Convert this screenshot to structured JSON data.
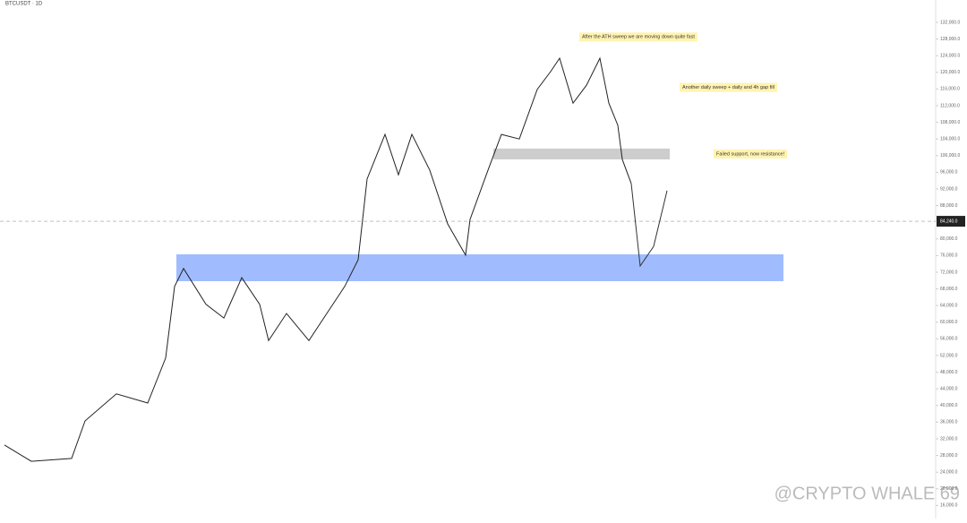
{
  "header": {
    "symbol": "BTCUSDT · 1D"
  },
  "chart_data": {
    "type": "line",
    "x": [
      5,
      35,
      80,
      95,
      130,
      165,
      185,
      195,
      205,
      230,
      250,
      270,
      290,
      300,
      320,
      345,
      365,
      385,
      400,
      410,
      430,
      445,
      460,
      480,
      500,
      520,
      525,
      545,
      560,
      580,
      600,
      615,
      625,
      640,
      655,
      670,
      680,
      690,
      695,
      705
    ],
    "values": [
      30500,
      26600,
      27300,
      36300,
      42800,
      40600,
      51400,
      68600,
      72900,
      64300,
      61000,
      70700,
      64300,
      55600,
      62100,
      55600,
      62100,
      68600,
      75000,
      94400,
      105100,
      95400,
      105100,
      96500,
      83600,
      76100,
      84700,
      96500,
      105100,
      104000,
      115900,
      120200,
      123400,
      112600,
      116900,
      123400,
      112600,
      107300,
      99100,
      93300
    ],
    "projection": {
      "x": [
        705,
        715,
        730,
        745
      ],
      "values": [
        93300,
        73500,
        78200,
        91600
      ]
    },
    "color": "#222222",
    "projection_color": "#333333",
    "xlim": [
      0,
      1050
    ],
    "ylim": [
      14000,
      136000
    ],
    "yticks": [
      {
        "value": 132000,
        "label": "132,000.0"
      },
      {
        "value": 128000,
        "label": "128,000.0"
      },
      {
        "value": 124000,
        "label": "124,000.0"
      },
      {
        "value": 120000,
        "label": "120,000.0"
      },
      {
        "value": 116000,
        "label": "116,000.0"
      },
      {
        "value": 112000,
        "label": "112,000.0"
      },
      {
        "value": 108000,
        "label": "108,000.0"
      },
      {
        "value": 104000,
        "label": "104,000.0"
      },
      {
        "value": 100000,
        "label": "100,000.0"
      },
      {
        "value": 96000,
        "label": "96,000.0"
      },
      {
        "value": 92000,
        "label": "92,000.0"
      },
      {
        "value": 88000,
        "label": "88,000.0"
      },
      {
        "value": 80000,
        "label": "80,000.0"
      },
      {
        "value": 76000,
        "label": "76,000.0"
      },
      {
        "value": 72000,
        "label": "72,000.0"
      },
      {
        "value": 68000,
        "label": "68,000.0"
      },
      {
        "value": 64000,
        "label": "64,000.0"
      },
      {
        "value": 60000,
        "label": "60,000.0"
      },
      {
        "value": 56000,
        "label": "56,000.0"
      },
      {
        "value": 52000,
        "label": "52,000.0"
      },
      {
        "value": 48000,
        "label": "48,000.0"
      },
      {
        "value": 44000,
        "label": "44,000.0"
      },
      {
        "value": 40000,
        "label": "40,000.0"
      },
      {
        "value": 36000,
        "label": "36,000.0"
      },
      {
        "value": 32000,
        "label": "32,000.0"
      },
      {
        "value": 28000,
        "label": "28,000.0"
      },
      {
        "value": 24000,
        "label": "24,000.0"
      },
      {
        "value": 20000,
        "label": "20,000.0"
      },
      {
        "value": 16000,
        "label": "16,000.0"
      }
    ],
    "current_price": {
      "value": 84240,
      "label": "84,240.0"
    },
    "zones": [
      {
        "x0": 197,
        "x1": 875,
        "y0": 69850,
        "y1": 76300,
        "color": "#8fb0ff"
      },
      {
        "x0": 551,
        "x1": 748,
        "y0": 99100,
        "y1": 101700,
        "color": "#c4c4c4"
      }
    ],
    "annotations": [
      {
        "text": "After the ATH sweep we are moving down quite fast",
        "x": 650,
        "y": 128500
      },
      {
        "text": "Another daily sweep + daily and 4h gap fill",
        "x": 762,
        "y": 116400
      },
      {
        "text": "Failed support, now resistance!",
        "x": 800,
        "y": 100400
      }
    ]
  },
  "watermark": "@CRYPTO WHALE 69"
}
